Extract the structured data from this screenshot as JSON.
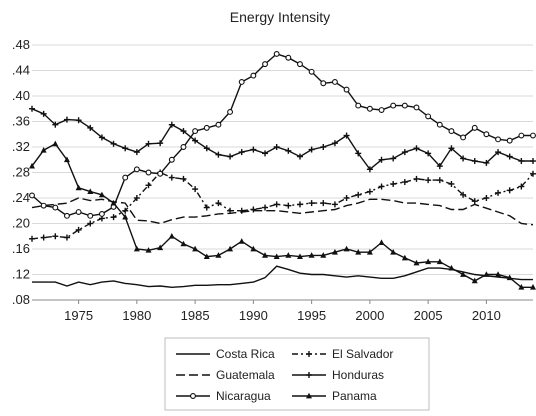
{
  "chart_data": {
    "type": "line",
    "title": "Energy Intensity",
    "xlabel": "",
    "ylabel": "",
    "xlim": [
      1971,
      2014
    ],
    "ylim": [
      0.08,
      0.48
    ],
    "x_ticks": [
      1975,
      1980,
      1985,
      1990,
      1995,
      2000,
      2005,
      2010
    ],
    "y_ticks": [
      0.08,
      0.12,
      0.16,
      0.2,
      0.24,
      0.28,
      0.32,
      0.36,
      0.4,
      0.44,
      0.48
    ],
    "y_tick_labels": [
      ".08",
      ".12",
      ".16",
      ".20",
      ".24",
      ".28",
      ".32",
      ".36",
      ".40",
      ".44",
      ".48"
    ],
    "grid": "horizontal",
    "legend_position": "bottom",
    "x": [
      1971,
      1972,
      1973,
      1974,
      1975,
      1976,
      1977,
      1978,
      1979,
      1980,
      1981,
      1982,
      1983,
      1984,
      1985,
      1986,
      1987,
      1988,
      1989,
      1990,
      1991,
      1992,
      1993,
      1994,
      1995,
      1996,
      1997,
      1998,
      1999,
      2000,
      2001,
      2002,
      2003,
      2004,
      2005,
      2006,
      2007,
      2008,
      2009,
      2010,
      2011,
      2012,
      2013,
      2014
    ],
    "series": [
      {
        "name": "Costa Rica",
        "style": "solid",
        "marker": "none",
        "values": [
          0.108,
          0.108,
          0.108,
          0.102,
          0.108,
          0.104,
          0.108,
          0.11,
          0.106,
          0.104,
          0.101,
          0.102,
          0.1,
          0.101,
          0.103,
          0.103,
          0.104,
          0.104,
          0.106,
          0.108,
          0.115,
          0.133,
          0.128,
          0.122,
          0.12,
          0.12,
          0.118,
          0.116,
          0.118,
          0.116,
          0.114,
          0.114,
          0.118,
          0.124,
          0.13,
          0.13,
          0.128,
          0.124,
          0.12,
          0.118,
          0.116,
          0.114,
          0.112,
          0.112
        ]
      },
      {
        "name": "El Salvador",
        "style": "dash-dot",
        "marker": "plus",
        "values": [
          0.176,
          0.178,
          0.18,
          0.178,
          0.19,
          0.2,
          0.208,
          0.21,
          0.22,
          0.24,
          0.26,
          0.28,
          0.272,
          0.27,
          0.254,
          0.225,
          0.232,
          0.22,
          0.22,
          0.222,
          0.225,
          0.23,
          0.228,
          0.23,
          0.232,
          0.232,
          0.23,
          0.24,
          0.245,
          0.25,
          0.258,
          0.262,
          0.265,
          0.27,
          0.268,
          0.268,
          0.262,
          0.245,
          0.235,
          0.24,
          0.248,
          0.252,
          0.258,
          0.278
        ]
      },
      {
        "name": "Guatemala",
        "style": "dashed",
        "marker": "none",
        "values": [
          0.225,
          0.228,
          0.23,
          0.232,
          0.24,
          0.236,
          0.238,
          0.234,
          0.232,
          0.205,
          0.204,
          0.2,
          0.206,
          0.21,
          0.21,
          0.212,
          0.215,
          0.216,
          0.218,
          0.22,
          0.22,
          0.22,
          0.218,
          0.216,
          0.218,
          0.22,
          0.222,
          0.228,
          0.232,
          0.238,
          0.238,
          0.236,
          0.232,
          0.232,
          0.23,
          0.228,
          0.222,
          0.222,
          0.23,
          0.224,
          0.218,
          0.212,
          0.2,
          0.198
        ]
      },
      {
        "name": "Honduras",
        "style": "solid",
        "marker": "plus",
        "values": [
          0.38,
          0.372,
          0.355,
          0.363,
          0.362,
          0.35,
          0.335,
          0.325,
          0.318,
          0.312,
          0.325,
          0.326,
          0.355,
          0.345,
          0.33,
          0.318,
          0.308,
          0.305,
          0.312,
          0.316,
          0.31,
          0.32,
          0.314,
          0.305,
          0.316,
          0.32,
          0.326,
          0.338,
          0.31,
          0.285,
          0.3,
          0.302,
          0.312,
          0.318,
          0.31,
          0.29,
          0.318,
          0.302,
          0.298,
          0.295,
          0.312,
          0.305,
          0.298,
          0.298
        ]
      },
      {
        "name": "Nicaragua",
        "style": "solid",
        "marker": "circle",
        "values": [
          0.244,
          0.228,
          0.225,
          0.212,
          0.218,
          0.212,
          0.215,
          0.226,
          0.272,
          0.285,
          0.28,
          0.278,
          0.3,
          0.32,
          0.345,
          0.35,
          0.355,
          0.375,
          0.422,
          0.432,
          0.45,
          0.466,
          0.46,
          0.45,
          0.438,
          0.42,
          0.422,
          0.41,
          0.385,
          0.38,
          0.378,
          0.385,
          0.385,
          0.382,
          0.368,
          0.355,
          0.345,
          0.335,
          0.35,
          0.34,
          0.332,
          0.33,
          0.338,
          0.338
        ]
      },
      {
        "name": "Panama",
        "style": "solid",
        "marker": "triangle",
        "values": [
          0.29,
          0.315,
          0.325,
          0.3,
          0.256,
          0.25,
          0.245,
          0.232,
          0.21,
          0.16,
          0.158,
          0.162,
          0.18,
          0.168,
          0.16,
          0.148,
          0.15,
          0.16,
          0.172,
          0.16,
          0.15,
          0.148,
          0.15,
          0.148,
          0.15,
          0.15,
          0.155,
          0.16,
          0.155,
          0.155,
          0.17,
          0.155,
          0.146,
          0.138,
          0.14,
          0.14,
          0.13,
          0.12,
          0.11,
          0.12,
          0.12,
          0.115,
          0.1,
          0.1
        ]
      }
    ]
  }
}
